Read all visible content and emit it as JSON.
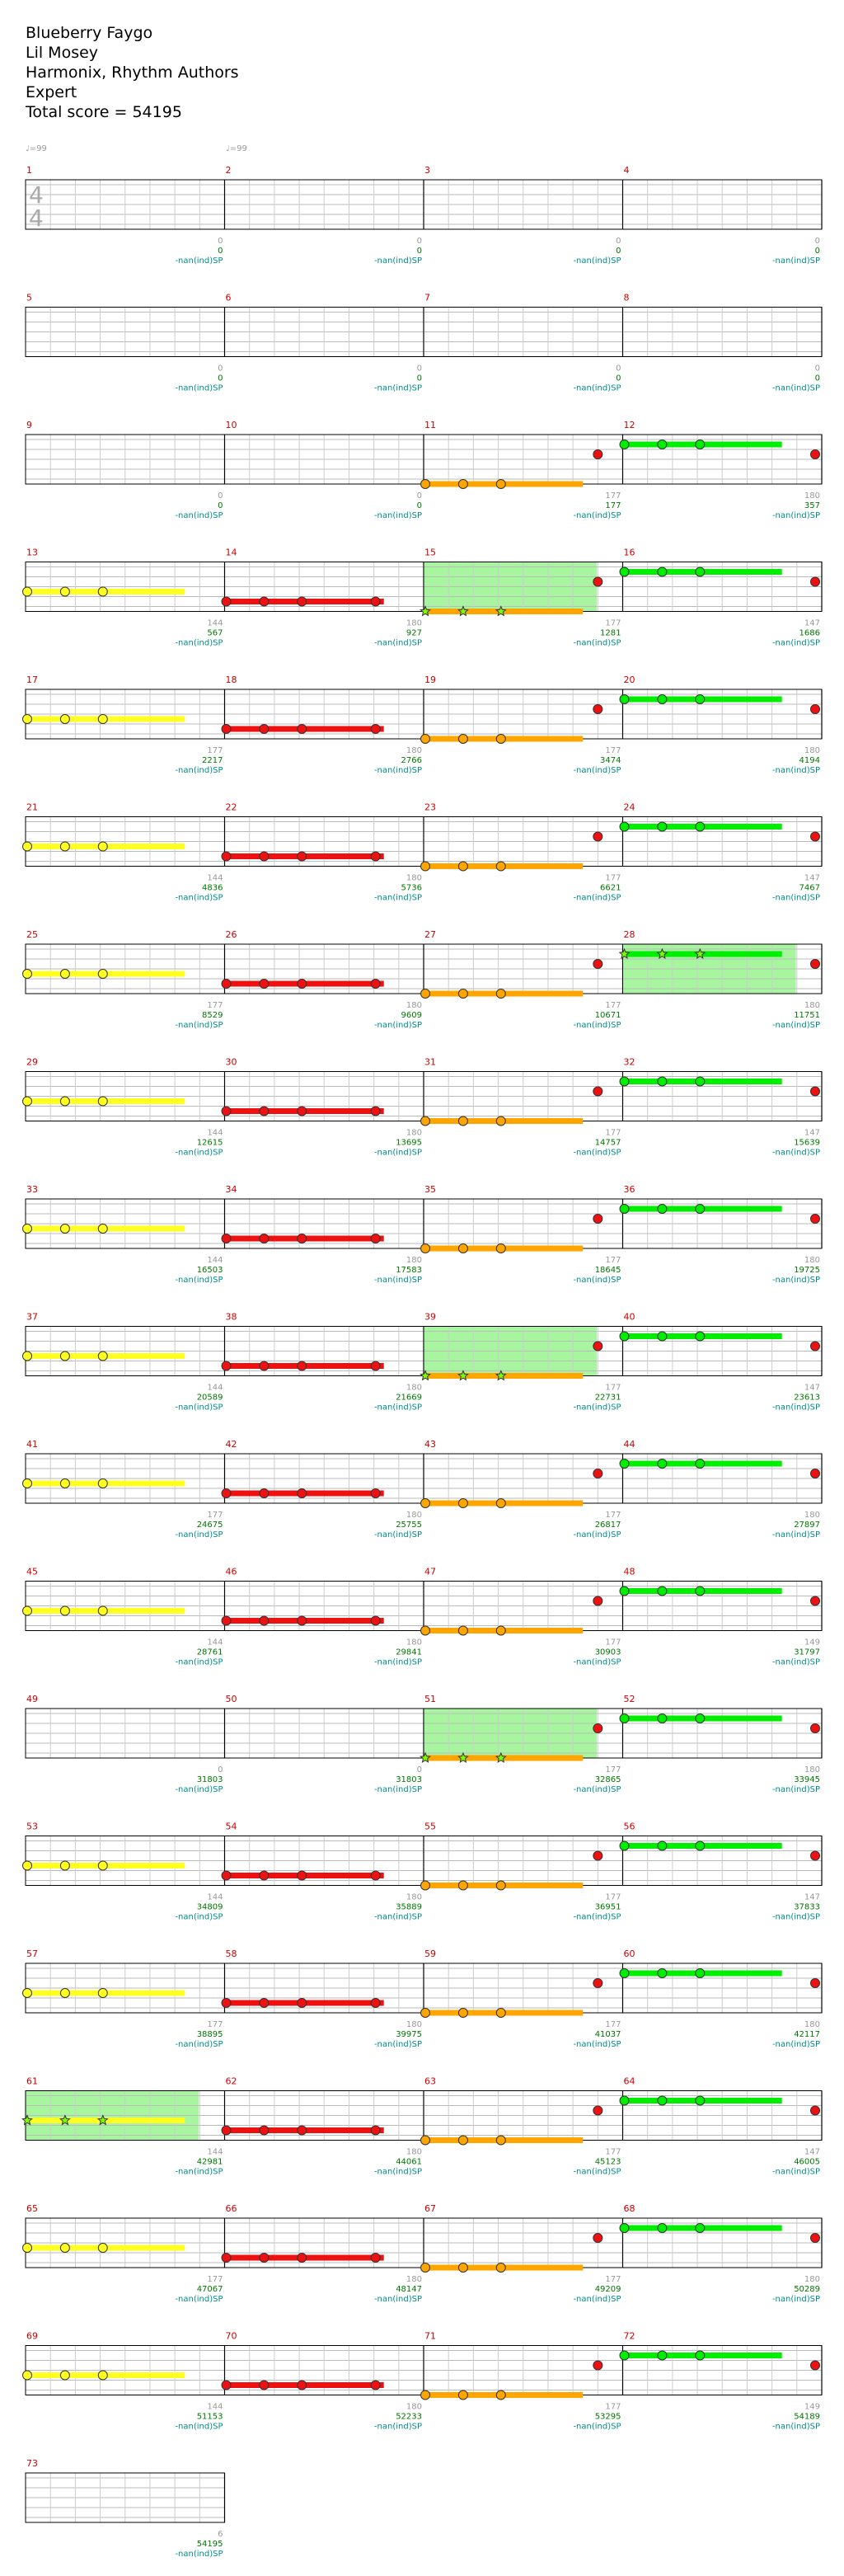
{
  "song": {
    "title": "Blueberry Faygo",
    "artist": "Lil Mosey",
    "charter": "Harmonix, Rhythm Authors",
    "difficulty": "Expert",
    "total_score_label": "Total score = 54195"
  },
  "tempo_markers": [
    "♩=99",
    "♩=99"
  ],
  "time_signature": [
    "4",
    "4"
  ],
  "colors": {
    "green": "#00ee00",
    "red": "#ee1111",
    "yellow": "#ffff22",
    "orange": "#ffa500",
    "star_power": "#a8f5a0",
    "measure_number": "#cc0000"
  },
  "measures": [
    {
      "n": "1",
      "a": "0",
      "b": "0",
      "c": "-nan(ind)SP"
    },
    {
      "n": "2",
      "a": "0",
      "b": "0",
      "c": "-nan(ind)SP"
    },
    {
      "n": "3",
      "a": "0",
      "b": "0",
      "c": "-nan(ind)SP"
    },
    {
      "n": "4",
      "a": "0",
      "b": "0",
      "c": "-nan(ind)SP"
    },
    {
      "n": "5",
      "a": "0",
      "b": "0",
      "c": "-nan(ind)SP"
    },
    {
      "n": "6",
      "a": "0",
      "b": "0",
      "c": "-nan(ind)SP"
    },
    {
      "n": "7",
      "a": "0",
      "b": "0",
      "c": "-nan(ind)SP"
    },
    {
      "n": "8",
      "a": "0",
      "b": "0",
      "c": "-nan(ind)SP"
    },
    {
      "n": "9",
      "a": "0",
      "b": "0",
      "c": "-nan(ind)SP"
    },
    {
      "n": "10",
      "a": "0",
      "b": "0",
      "c": "-nan(ind)SP"
    },
    {
      "n": "11",
      "a": "177",
      "b": "177",
      "c": "-nan(ind)SP"
    },
    {
      "n": "12",
      "a": "180",
      "b": "357",
      "c": "-nan(ind)SP"
    },
    {
      "n": "13",
      "a": "144",
      "b": "567",
      "c": "-nan(ind)SP"
    },
    {
      "n": "14",
      "a": "180",
      "b": "927",
      "c": "-nan(ind)SP"
    },
    {
      "n": "15",
      "a": "177",
      "b": "1281",
      "c": "-nan(ind)SP"
    },
    {
      "n": "16",
      "a": "147",
      "b": "1686",
      "c": "-nan(ind)SP"
    },
    {
      "n": "17",
      "a": "177",
      "b": "2217",
      "c": "-nan(ind)SP"
    },
    {
      "n": "18",
      "a": "180",
      "b": "2766",
      "c": "-nan(ind)SP"
    },
    {
      "n": "19",
      "a": "177",
      "b": "3474",
      "c": "-nan(ind)SP"
    },
    {
      "n": "20",
      "a": "180",
      "b": "4194",
      "c": "-nan(ind)SP"
    },
    {
      "n": "21",
      "a": "144",
      "b": "4836",
      "c": "-nan(ind)SP"
    },
    {
      "n": "22",
      "a": "180",
      "b": "5736",
      "c": "-nan(ind)SP"
    },
    {
      "n": "23",
      "a": "177",
      "b": "6621",
      "c": "-nan(ind)SP"
    },
    {
      "n": "24",
      "a": "147",
      "b": "7467",
      "c": "-nan(ind)SP"
    },
    {
      "n": "25",
      "a": "177",
      "b": "8529",
      "c": "-nan(ind)SP"
    },
    {
      "n": "26",
      "a": "180",
      "b": "9609",
      "c": "-nan(ind)SP"
    },
    {
      "n": "27",
      "a": "177",
      "b": "10671",
      "c": "-nan(ind)SP"
    },
    {
      "n": "28",
      "a": "180",
      "b": "11751",
      "c": "-nan(ind)SP"
    },
    {
      "n": "29",
      "a": "144",
      "b": "12615",
      "c": "-nan(ind)SP"
    },
    {
      "n": "30",
      "a": "180",
      "b": "13695",
      "c": "-nan(ind)SP"
    },
    {
      "n": "31",
      "a": "177",
      "b": "14757",
      "c": "-nan(ind)SP"
    },
    {
      "n": "32",
      "a": "147",
      "b": "15639",
      "c": "-nan(ind)SP"
    },
    {
      "n": "33",
      "a": "144",
      "b": "16503",
      "c": "-nan(ind)SP"
    },
    {
      "n": "34",
      "a": "180",
      "b": "17583",
      "c": "-nan(ind)SP"
    },
    {
      "n": "35",
      "a": "177",
      "b": "18645",
      "c": "-nan(ind)SP"
    },
    {
      "n": "36",
      "a": "180",
      "b": "19725",
      "c": "-nan(ind)SP"
    },
    {
      "n": "37",
      "a": "144",
      "b": "20589",
      "c": "-nan(ind)SP"
    },
    {
      "n": "38",
      "a": "180",
      "b": "21669",
      "c": "-nan(ind)SP"
    },
    {
      "n": "39",
      "a": "177",
      "b": "22731",
      "c": "-nan(ind)SP"
    },
    {
      "n": "40",
      "a": "147",
      "b": "23613",
      "c": "-nan(ind)SP"
    },
    {
      "n": "41",
      "a": "177",
      "b": "24675",
      "c": "-nan(ind)SP"
    },
    {
      "n": "42",
      "a": "180",
      "b": "25755",
      "c": "-nan(ind)SP"
    },
    {
      "n": "43",
      "a": "177",
      "b": "26817",
      "c": "-nan(ind)SP"
    },
    {
      "n": "44",
      "a": "180",
      "b": "27897",
      "c": "-nan(ind)SP"
    },
    {
      "n": "45",
      "a": "144",
      "b": "28761",
      "c": "-nan(ind)SP"
    },
    {
      "n": "46",
      "a": "180",
      "b": "29841",
      "c": "-nan(ind)SP"
    },
    {
      "n": "47",
      "a": "177",
      "b": "30903",
      "c": "-nan(ind)SP"
    },
    {
      "n": "48",
      "a": "149",
      "b": "31797",
      "c": "-nan(ind)SP"
    },
    {
      "n": "49",
      "a": "0",
      "b": "31803",
      "c": "-nan(ind)SP"
    },
    {
      "n": "50",
      "a": "0",
      "b": "31803",
      "c": "-nan(ind)SP"
    },
    {
      "n": "51",
      "a": "177",
      "b": "32865",
      "c": "-nan(ind)SP"
    },
    {
      "n": "52",
      "a": "180",
      "b": "33945",
      "c": "-nan(ind)SP"
    },
    {
      "n": "53",
      "a": "144",
      "b": "34809",
      "c": "-nan(ind)SP"
    },
    {
      "n": "54",
      "a": "180",
      "b": "35889",
      "c": "-nan(ind)SP"
    },
    {
      "n": "55",
      "a": "177",
      "b": "36951",
      "c": "-nan(ind)SP"
    },
    {
      "n": "56",
      "a": "147",
      "b": "37833",
      "c": "-nan(ind)SP"
    },
    {
      "n": "57",
      "a": "177",
      "b": "38895",
      "c": "-nan(ind)SP"
    },
    {
      "n": "58",
      "a": "180",
      "b": "39975",
      "c": "-nan(ind)SP"
    },
    {
      "n": "59",
      "a": "177",
      "b": "41037",
      "c": "-nan(ind)SP"
    },
    {
      "n": "60",
      "a": "180",
      "b": "42117",
      "c": "-nan(ind)SP"
    },
    {
      "n": "61",
      "a": "144",
      "b": "42981",
      "c": "-nan(ind)SP"
    },
    {
      "n": "62",
      "a": "180",
      "b": "44061",
      "c": "-nan(ind)SP"
    },
    {
      "n": "63",
      "a": "177",
      "b": "45123",
      "c": "-nan(ind)SP"
    },
    {
      "n": "64",
      "a": "147",
      "b": "46005",
      "c": "-nan(ind)SP"
    },
    {
      "n": "65",
      "a": "177",
      "b": "47067",
      "c": "-nan(ind)SP"
    },
    {
      "n": "66",
      "a": "180",
      "b": "48147",
      "c": "-nan(ind)SP"
    },
    {
      "n": "67",
      "a": "177",
      "b": "49209",
      "c": "-nan(ind)SP"
    },
    {
      "n": "68",
      "a": "180",
      "b": "50289",
      "c": "-nan(ind)SP"
    },
    {
      "n": "69",
      "a": "144",
      "b": "51153",
      "c": "-nan(ind)SP"
    },
    {
      "n": "70",
      "a": "180",
      "b": "52233",
      "c": "-nan(ind)SP"
    },
    {
      "n": "71",
      "a": "177",
      "b": "53295",
      "c": "-nan(ind)SP"
    },
    {
      "n": "72",
      "a": "149",
      "b": "54189",
      "c": "-nan(ind)SP"
    },
    {
      "n": "73",
      "a": "6",
      "b": "54195",
      "c": "-nan(ind)SP"
    }
  ],
  "star_power_measures": [
    "15",
    "28",
    "39",
    "51",
    "61"
  ]
}
